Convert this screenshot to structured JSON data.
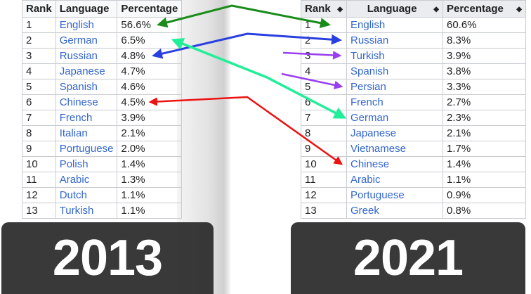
{
  "left_table": {
    "headers": [
      "Rank",
      "Language",
      "Percentage"
    ],
    "rows": [
      [
        "1",
        "English",
        "56.6%"
      ],
      [
        "2",
        "German",
        "6.5%"
      ],
      [
        "3",
        "Russian",
        "4.8%"
      ],
      [
        "4",
        "Japanese",
        "4.7%"
      ],
      [
        "5",
        "Spanish",
        "4.6%"
      ],
      [
        "6",
        "Chinese",
        "4.5%"
      ],
      [
        "7",
        "French",
        "3.9%"
      ],
      [
        "8",
        "Italian",
        "2.1%"
      ],
      [
        "9",
        "Portuguese",
        "2.0%"
      ],
      [
        "10",
        "Polish",
        "1.4%"
      ],
      [
        "11",
        "Arabic",
        "1.3%"
      ],
      [
        "12",
        "Dutch",
        "1.1%"
      ],
      [
        "13",
        "Turkish",
        "1.1%"
      ]
    ]
  },
  "right_table": {
    "headers": [
      "Rank",
      "Language",
      "Percentage"
    ],
    "sort_icon": "sort-arrows-icon",
    "rows": [
      [
        "1",
        "English",
        "60.6%"
      ],
      [
        "2",
        "Russian",
        "8.3%"
      ],
      [
        "3",
        "Turkish",
        "3.9%"
      ],
      [
        "4",
        "Spanish",
        "3.8%"
      ],
      [
        "5",
        "Persian",
        "3.3%"
      ],
      [
        "6",
        "French",
        "2.7%"
      ],
      [
        "7",
        "German",
        "2.3%"
      ],
      [
        "8",
        "Japanese",
        "2.1%"
      ],
      [
        "9",
        "Vietnamese",
        "1.7%"
      ],
      [
        "10",
        "Chinese",
        "1.4%"
      ],
      [
        "11",
        "Arabic",
        "1.1%"
      ],
      [
        "12",
        "Portuguese",
        "0.9%"
      ],
      [
        "13",
        "Greek",
        "0.8%"
      ]
    ]
  },
  "overlays": {
    "left_year": "2013",
    "right_year": "2021"
  },
  "arrow_colors": {
    "english": "#1a8c1a",
    "russian": "#2a3fe0",
    "german": "#22ee99",
    "turkish": "#9a3ff0",
    "persian": "#9a3ff0",
    "chinese": "#ee1111"
  }
}
